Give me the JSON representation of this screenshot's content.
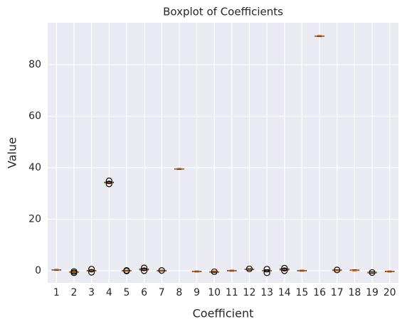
{
  "chart_data": {
    "type": "boxplot",
    "title": "Boxplot of Coefficients",
    "x_label": "Coefficient",
    "y_label": "Value",
    "categories": [
      "1",
      "2",
      "3",
      "4",
      "5",
      "6",
      "7",
      "8",
      "9",
      "10",
      "11",
      "12",
      "13",
      "14",
      "15",
      "16",
      "17",
      "18",
      "19",
      "20"
    ],
    "boxes": [
      {
        "whislo": 0.1,
        "q1": 0.2,
        "med": 0.3,
        "q3": 0.4,
        "whishi": 0.5,
        "fliers": []
      },
      {
        "whislo": -0.9,
        "q1": -0.6,
        "med": -0.5,
        "q3": -0.4,
        "whishi": -0.2,
        "fliers": [
          -0.3,
          -0.8
        ]
      },
      {
        "whislo": -0.3,
        "q1": -0.1,
        "med": 0.0,
        "q3": 0.1,
        "whishi": 0.3,
        "fliers": [
          0.6,
          -0.6
        ]
      },
      {
        "whislo": 33.9,
        "q1": 34.1,
        "med": 34.2,
        "q3": 34.4,
        "whishi": 34.6,
        "fliers": [
          34.9,
          33.7
        ]
      },
      {
        "whislo": -0.2,
        "q1": -0.1,
        "med": 0.0,
        "q3": 0.1,
        "whishi": 0.2,
        "fliers": [
          0.1,
          -0.1
        ]
      },
      {
        "whislo": 0.1,
        "q1": 0.3,
        "med": 0.5,
        "q3": 0.7,
        "whishi": 0.9,
        "fliers": [
          1.1,
          0.0
        ]
      },
      {
        "whislo": -0.2,
        "q1": -0.1,
        "med": 0.0,
        "q3": 0.1,
        "whishi": 0.2,
        "fliers": [
          0.1
        ]
      },
      {
        "whislo": 39.3,
        "q1": 39.4,
        "med": 39.5,
        "q3": 39.6,
        "whishi": 39.7,
        "fliers": []
      },
      {
        "whislo": -0.5,
        "q1": -0.4,
        "med": -0.3,
        "q3": -0.2,
        "whishi": -0.1,
        "fliers": []
      },
      {
        "whislo": -0.8,
        "q1": -0.6,
        "med": -0.5,
        "q3": -0.4,
        "whishi": -0.2,
        "fliers": [
          -0.4
        ]
      },
      {
        "whislo": -0.2,
        "q1": -0.1,
        "med": 0.0,
        "q3": 0.1,
        "whishi": 0.2,
        "fliers": []
      },
      {
        "whislo": 0.2,
        "q1": 0.4,
        "med": 0.5,
        "q3": 0.6,
        "whishi": 0.8,
        "fliers": [
          0.7
        ]
      },
      {
        "whislo": -0.4,
        "q1": -0.1,
        "med": 0.0,
        "q3": 0.1,
        "whishi": 0.4,
        "fliers": [
          0.6,
          -0.8
        ]
      },
      {
        "whislo": 0.1,
        "q1": 0.3,
        "med": 0.5,
        "q3": 0.7,
        "whishi": 0.9,
        "fliers": [
          1.0,
          0.0
        ]
      },
      {
        "whislo": -0.2,
        "q1": -0.1,
        "med": 0.0,
        "q3": 0.1,
        "whishi": 0.2,
        "fliers": []
      },
      {
        "whislo": 90.9,
        "q1": 91.0,
        "med": 91.1,
        "q3": 91.2,
        "whishi": 91.3,
        "fliers": []
      },
      {
        "whislo": 0.0,
        "q1": 0.1,
        "med": 0.2,
        "q3": 0.3,
        "whishi": 0.4,
        "fliers": [
          0.3
        ]
      },
      {
        "whislo": 0.0,
        "q1": 0.1,
        "med": 0.2,
        "q3": 0.3,
        "whishi": 0.4,
        "fliers": []
      },
      {
        "whislo": -1.0,
        "q1": -0.8,
        "med": -0.7,
        "q3": -0.6,
        "whishi": -0.4,
        "fliers": [
          -0.7
        ]
      },
      {
        "whislo": -0.5,
        "q1": -0.4,
        "med": -0.3,
        "q3": -0.2,
        "whishi": -0.1,
        "fliers": []
      }
    ],
    "box_color": "#000000",
    "median_color": "#ff7f0e",
    "ylim": [
      -4.7,
      96.3
    ],
    "yticks": [
      0,
      20,
      40,
      60,
      80
    ],
    "grid": true
  }
}
